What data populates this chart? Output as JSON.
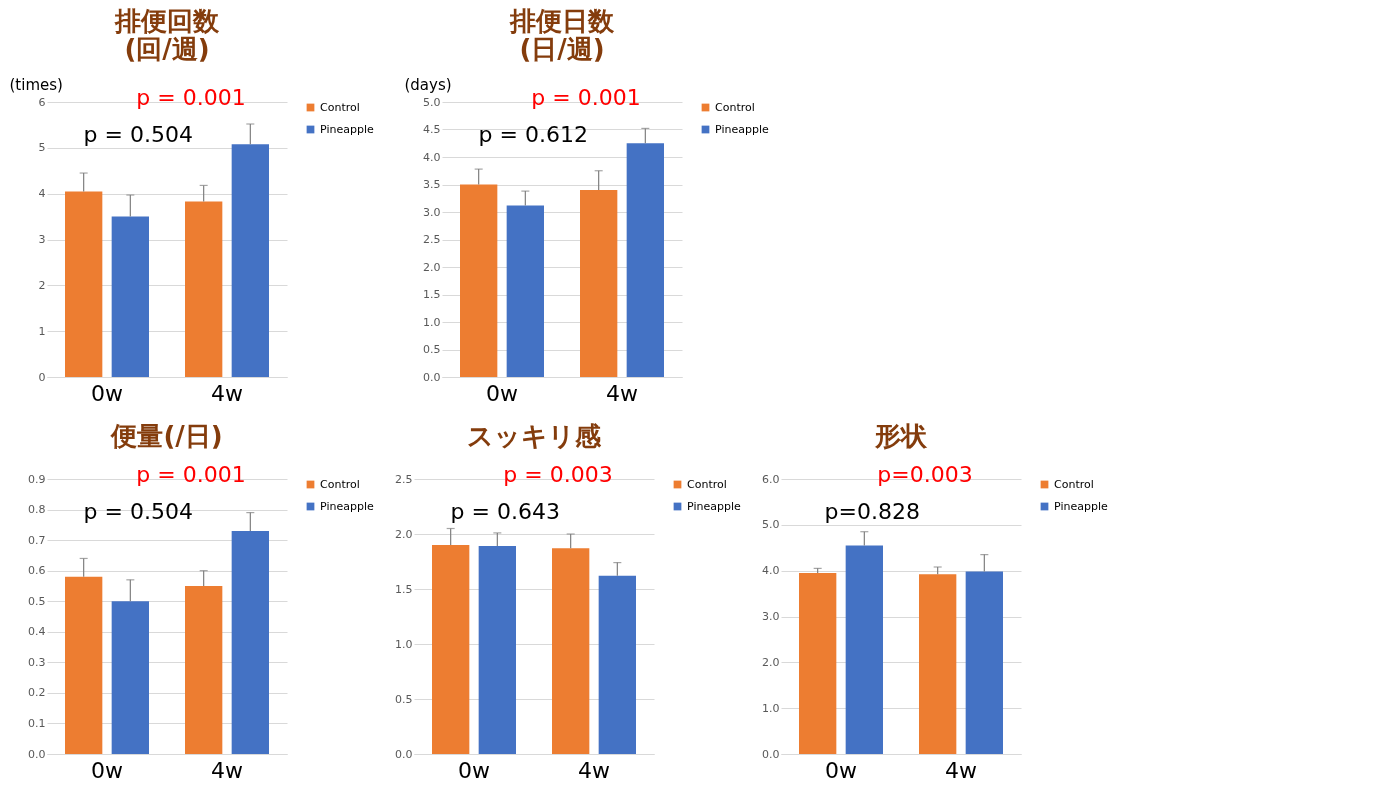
{
  "chart_data": [
    {
      "type": "bar",
      "title": "排便回数\n(回/週)",
      "ylabel": "(times)",
      "categories": [
        "0w",
        "4w"
      ],
      "series": [
        {
          "name": "Control",
          "color": "#ed7d31",
          "values": [
            4.05,
            3.83
          ],
          "errors": [
            [
              4.05,
              4.45
            ],
            [
              3.83,
              4.18
            ]
          ]
        },
        {
          "name": "Pineapple",
          "color": "#4472c4",
          "values": [
            3.5,
            5.08
          ],
          "errors": [
            [
              3.5,
              3.97
            ],
            [
              5.08,
              5.52
            ]
          ]
        }
      ],
      "ylim": [
        0,
        6
      ],
      "yticks": [
        0,
        1,
        2,
        3,
        4,
        5,
        6
      ],
      "grid": "y",
      "legend": "top right",
      "annotations": [
        "p = 0.504",
        "p = 0.001"
      ]
    },
    {
      "type": "bar",
      "title": "排便日数\n(日/週)",
      "ylabel": "(days)",
      "categories": [
        "0w",
        "4w"
      ],
      "series": [
        {
          "name": "Control",
          "color": "#ed7d31",
          "values": [
            3.5,
            3.4
          ],
          "errors": [
            [
              3.5,
              3.78
            ],
            [
              3.4,
              3.75
            ]
          ]
        },
        {
          "name": "Pineapple",
          "color": "#4472c4",
          "values": [
            3.12,
            4.25
          ],
          "errors": [
            [
              3.12,
              3.38
            ],
            [
              4.25,
              4.52
            ]
          ]
        }
      ],
      "ylim": [
        0,
        5
      ],
      "yticks": [
        {
          "value": 0,
          "label": "0.0"
        },
        0.5,
        {
          "value": 1,
          "label": "1.0"
        },
        1.5,
        {
          "value": 2,
          "label": "2.0"
        },
        2.5,
        {
          "value": 3,
          "label": "3.0"
        },
        3.5,
        {
          "value": 4,
          "label": "4.0"
        },
        4.5,
        {
          "value": 5,
          "label": "5.0"
        }
      ],
      "grid": "y",
      "legend": "top right",
      "annotations": [
        "p = 0.612",
        "p = 0.001"
      ]
    },
    {
      "type": "bar",
      "title": "便量(/日)",
      "categories": [
        "0w",
        "4w"
      ],
      "series": [
        {
          "name": "Control",
          "color": "#ed7d31",
          "values": [
            0.58,
            0.55
          ],
          "errors": [
            [
              0.58,
              0.64
            ],
            [
              0.55,
              0.6
            ]
          ]
        },
        {
          "name": "Pineapple",
          "color": "#4472c4",
          "values": [
            0.5,
            0.73
          ],
          "errors": [
            [
              0.5,
              0.57
            ],
            [
              0.73,
              0.79
            ]
          ]
        }
      ],
      "ylim": [
        0,
        0.9
      ],
      "yticks": [
        {
          "value": 0,
          "label": "0.0"
        },
        0.1,
        0.2,
        0.3,
        0.4,
        0.5,
        0.6,
        0.7,
        0.8,
        0.9
      ],
      "grid": "y",
      "legend": "top right",
      "annotations": [
        "p = 0.504",
        "p = 0.001"
      ]
    },
    {
      "type": "bar",
      "title": "スッキリ感",
      "categories": [
        "0w",
        "4w"
      ],
      "series": [
        {
          "name": "Control",
          "color": "#ed7d31",
          "values": [
            1.9,
            1.87
          ],
          "errors": [
            [
              1.9,
              2.05
            ],
            [
              1.87,
              2.0
            ]
          ]
        },
        {
          "name": "Pineapple",
          "color": "#4472c4",
          "values": [
            1.89,
            1.62
          ],
          "errors": [
            [
              1.89,
              2.01
            ],
            [
              1.62,
              1.74
            ]
          ]
        }
      ],
      "ylim": [
        0,
        2.5
      ],
      "yticks": [
        {
          "value": 0,
          "label": "0.0"
        },
        0.5,
        {
          "value": 1,
          "label": "1.0"
        },
        1.5,
        {
          "value": 2,
          "label": "2.0"
        },
        2.5
      ],
      "grid": "y",
      "legend": "top right",
      "annotations": [
        "p = 0.643",
        "p = 0.003"
      ]
    },
    {
      "type": "bar",
      "title": "形状",
      "categories": [
        "0w",
        "4w"
      ],
      "series": [
        {
          "name": "Control",
          "color": "#ed7d31",
          "values": [
            3.95,
            3.92
          ],
          "errors": [
            [
              3.95,
              4.05
            ],
            [
              3.92,
              4.08
            ]
          ]
        },
        {
          "name": "Pineapple",
          "color": "#4472c4",
          "values": [
            4.55,
            3.98
          ],
          "errors": [
            [
              4.55,
              4.85
            ],
            [
              3.98,
              4.35
            ]
          ]
        }
      ],
      "ylim": [
        0,
        6
      ],
      "yticks": [
        {
          "value": 0,
          "label": "0.0"
        },
        {
          "value": 1,
          "label": "1.0"
        },
        {
          "value": 2,
          "label": "2.0"
        },
        {
          "value": 3,
          "label": "3.0"
        },
        {
          "value": 4,
          "label": "4.0"
        },
        {
          "value": 5,
          "label": "5.0"
        },
        {
          "value": 6,
          "label": "6.0"
        }
      ],
      "grid": "y",
      "legend": "top right",
      "annotations": [
        "p=0.828",
        "p=0.003"
      ]
    }
  ]
}
